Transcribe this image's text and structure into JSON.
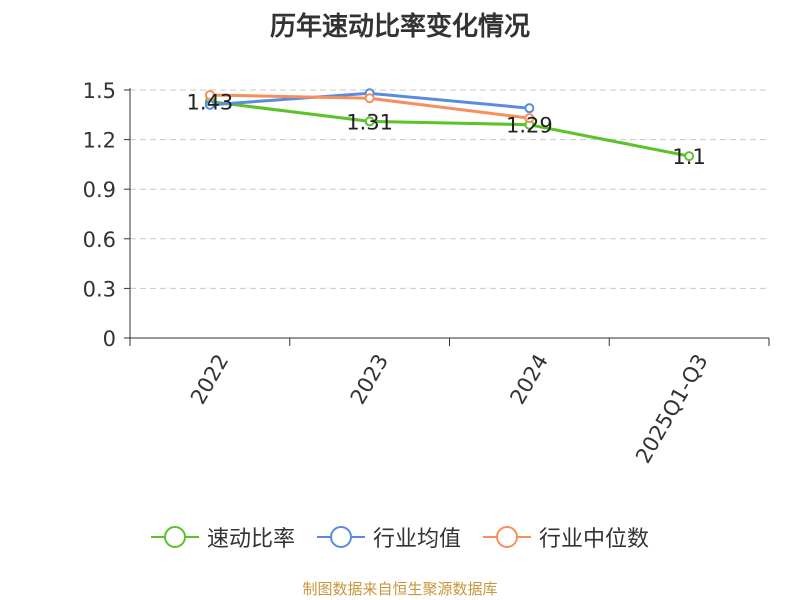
{
  "title": "历年速动比率变化情况",
  "source": "制图数据来自恒生聚源数据库",
  "chart_data": {
    "type": "line",
    "categories": [
      "2022",
      "2023",
      "2024",
      "2025Q1-Q3"
    ],
    "ylim": [
      0,
      1.5
    ],
    "yticks": [
      0,
      0.3,
      0.6,
      0.9,
      1.2,
      1.5
    ],
    "ytick_labels": [
      "0",
      "0.3",
      "0.6",
      "0.9",
      "1.2",
      "1.5"
    ],
    "grid": true,
    "legend_position": "bottom",
    "series": [
      {
        "name": "速动比率",
        "color": "#5ac326",
        "values": [
          1.43,
          1.31,
          1.29,
          1.1
        ],
        "labels": [
          "1.43",
          "1.31",
          "1.29",
          "1.1"
        ]
      },
      {
        "name": "行业均值",
        "color": "#5b8be0",
        "values": [
          1.41,
          1.48,
          1.39,
          null
        ]
      },
      {
        "name": "行业中位数",
        "color": "#f5905c",
        "values": [
          1.47,
          1.45,
          1.33,
          null
        ]
      }
    ]
  }
}
